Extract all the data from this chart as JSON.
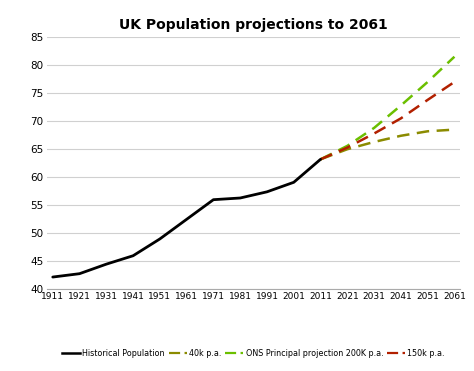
{
  "title": "UK Population projections to 2061",
  "years_historical": [
    1911,
    1921,
    1931,
    1941,
    1951,
    1961,
    1971,
    1981,
    1991,
    2001,
    2011
  ],
  "pop_historical": [
    42.2,
    42.8,
    44.5,
    46.0,
    49.0,
    52.5,
    56.0,
    56.3,
    57.4,
    59.1,
    63.2
  ],
  "years_proj": [
    2011,
    2021,
    2031,
    2041,
    2051,
    2061
  ],
  "pop_40k": [
    63.2,
    65.0,
    66.3,
    67.4,
    68.2,
    68.5
  ],
  "pop_ons": [
    63.2,
    65.6,
    68.8,
    72.8,
    77.0,
    81.5
  ],
  "pop_150k": [
    63.2,
    65.3,
    67.8,
    70.5,
    73.8,
    77.0
  ],
  "ylim": [
    40,
    85
  ],
  "yticks": [
    40,
    45,
    50,
    55,
    60,
    65,
    70,
    75,
    80,
    85
  ],
  "xticks": [
    1911,
    1921,
    1931,
    1941,
    1951,
    1961,
    1971,
    1981,
    1991,
    2001,
    2011,
    2021,
    2031,
    2041,
    2051,
    2061
  ],
  "color_historical": "#000000",
  "color_40k": "#8B8B00",
  "color_ons": "#6BBF00",
  "color_150k": "#B22000",
  "lw_historical": 2.0,
  "lw_proj": 1.8,
  "background_color": "#ffffff",
  "grid_color": "#d0d0d0",
  "legend_labels": [
    "Historical Population",
    "40k p.a.",
    "ONS Principal projection 200K p.a.",
    "150k p.a."
  ]
}
